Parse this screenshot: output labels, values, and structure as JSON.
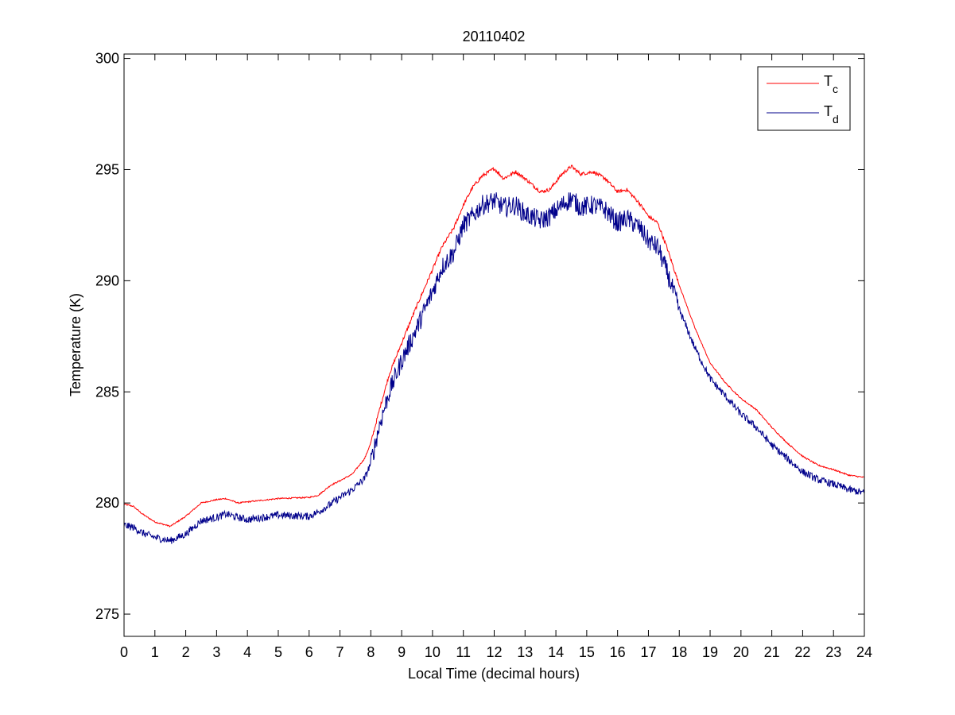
{
  "chart_data": {
    "type": "line",
    "title": "20110402",
    "xlabel": "Local Time (decimal hours)",
    "ylabel": "Temperature (K)",
    "xlim": [
      0,
      24
    ],
    "ylim": [
      274,
      300.2
    ],
    "xticks": [
      0,
      1,
      2,
      3,
      4,
      5,
      6,
      7,
      8,
      9,
      10,
      11,
      12,
      13,
      14,
      15,
      16,
      17,
      18,
      19,
      20,
      21,
      22,
      23,
      24
    ],
    "yticks": [
      275,
      280,
      285,
      290,
      295,
      300
    ],
    "grid": false,
    "legend_position": "top-right",
    "series": [
      {
        "name": "T",
        "subscript": "c",
        "color": "#ff0000",
        "noise": 0.05,
        "points": [
          [
            0,
            279.95
          ],
          [
            0.3,
            279.85
          ],
          [
            0.6,
            279.5
          ],
          [
            1.0,
            279.15
          ],
          [
            1.5,
            278.95
          ],
          [
            2.0,
            279.4
          ],
          [
            2.5,
            280.0
          ],
          [
            3.0,
            280.15
          ],
          [
            3.3,
            280.2
          ],
          [
            3.7,
            280.0
          ],
          [
            4.0,
            280.05
          ],
          [
            5.0,
            280.2
          ],
          [
            6.0,
            280.25
          ],
          [
            6.3,
            280.35
          ],
          [
            6.7,
            280.8
          ],
          [
            7.0,
            281.0
          ],
          [
            7.4,
            281.3
          ],
          [
            7.8,
            282.0
          ],
          [
            8.0,
            282.7
          ],
          [
            8.3,
            284.3
          ],
          [
            8.6,
            285.8
          ],
          [
            9.0,
            287.2
          ],
          [
            9.5,
            288.9
          ],
          [
            10.0,
            290.5
          ],
          [
            10.3,
            291.5
          ],
          [
            10.7,
            292.4
          ],
          [
            11.0,
            293.4
          ],
          [
            11.3,
            294.2
          ],
          [
            11.6,
            294.7
          ],
          [
            12.0,
            295.05
          ],
          [
            12.3,
            294.6
          ],
          [
            12.7,
            294.9
          ],
          [
            13.0,
            294.6
          ],
          [
            13.5,
            294.0
          ],
          [
            13.8,
            294.1
          ],
          [
            14.2,
            294.8
          ],
          [
            14.5,
            295.15
          ],
          [
            14.8,
            294.8
          ],
          [
            15.2,
            294.9
          ],
          [
            15.6,
            294.6
          ],
          [
            16.0,
            294.0
          ],
          [
            16.3,
            294.1
          ],
          [
            16.7,
            293.5
          ],
          [
            17.0,
            292.9
          ],
          [
            17.3,
            292.6
          ],
          [
            17.6,
            291.5
          ],
          [
            18.0,
            289.8
          ],
          [
            18.5,
            287.9
          ],
          [
            19.0,
            286.3
          ],
          [
            19.5,
            285.4
          ],
          [
            20.0,
            284.7
          ],
          [
            20.5,
            284.2
          ],
          [
            21.0,
            283.4
          ],
          [
            21.5,
            282.7
          ],
          [
            22.0,
            282.1
          ],
          [
            22.5,
            281.7
          ],
          [
            23.0,
            281.5
          ],
          [
            23.5,
            281.25
          ],
          [
            24.0,
            281.15
          ]
        ]
      },
      {
        "name": "T",
        "subscript": "d",
        "color": "#00008b",
        "noise": 0.28,
        "points": [
          [
            0,
            279.0
          ],
          [
            0.3,
            278.9
          ],
          [
            0.6,
            278.65
          ],
          [
            1.0,
            278.45
          ],
          [
            1.5,
            278.3
          ],
          [
            2.0,
            278.6
          ],
          [
            2.5,
            279.2
          ],
          [
            3.0,
            279.35
          ],
          [
            3.3,
            279.5
          ],
          [
            3.7,
            279.35
          ],
          [
            4.0,
            279.25
          ],
          [
            5.0,
            279.45
          ],
          [
            6.0,
            279.4
          ],
          [
            6.3,
            279.6
          ],
          [
            6.7,
            279.95
          ],
          [
            7.0,
            280.25
          ],
          [
            7.4,
            280.6
          ],
          [
            7.8,
            281.1
          ],
          [
            8.0,
            281.8
          ],
          [
            8.3,
            283.6
          ],
          [
            8.6,
            285.0
          ],
          [
            9.0,
            286.4
          ],
          [
            9.5,
            287.9
          ],
          [
            10.0,
            289.5
          ],
          [
            10.3,
            290.6
          ],
          [
            10.7,
            291.3
          ],
          [
            11.0,
            292.5
          ],
          [
            11.3,
            292.9
          ],
          [
            11.6,
            293.4
          ],
          [
            12.0,
            293.6
          ],
          [
            12.3,
            293.3
          ],
          [
            12.7,
            293.4
          ],
          [
            13.0,
            293.0
          ],
          [
            13.5,
            292.7
          ],
          [
            13.8,
            292.9
          ],
          [
            14.2,
            293.4
          ],
          [
            14.5,
            293.7
          ],
          [
            14.8,
            293.3
          ],
          [
            15.2,
            293.4
          ],
          [
            15.6,
            293.2
          ],
          [
            16.0,
            292.6
          ],
          [
            16.3,
            292.8
          ],
          [
            16.7,
            292.4
          ],
          [
            17.0,
            291.8
          ],
          [
            17.3,
            291.5
          ],
          [
            17.6,
            290.4
          ],
          [
            18.0,
            288.7
          ],
          [
            18.5,
            287.0
          ],
          [
            19.0,
            285.6
          ],
          [
            19.5,
            284.8
          ],
          [
            20.0,
            284.0
          ],
          [
            20.5,
            283.4
          ],
          [
            21.0,
            282.6
          ],
          [
            21.5,
            282.0
          ],
          [
            22.0,
            281.4
          ],
          [
            22.5,
            281.05
          ],
          [
            23.0,
            280.85
          ],
          [
            23.5,
            280.6
          ],
          [
            24.0,
            280.45
          ]
        ]
      }
    ]
  }
}
